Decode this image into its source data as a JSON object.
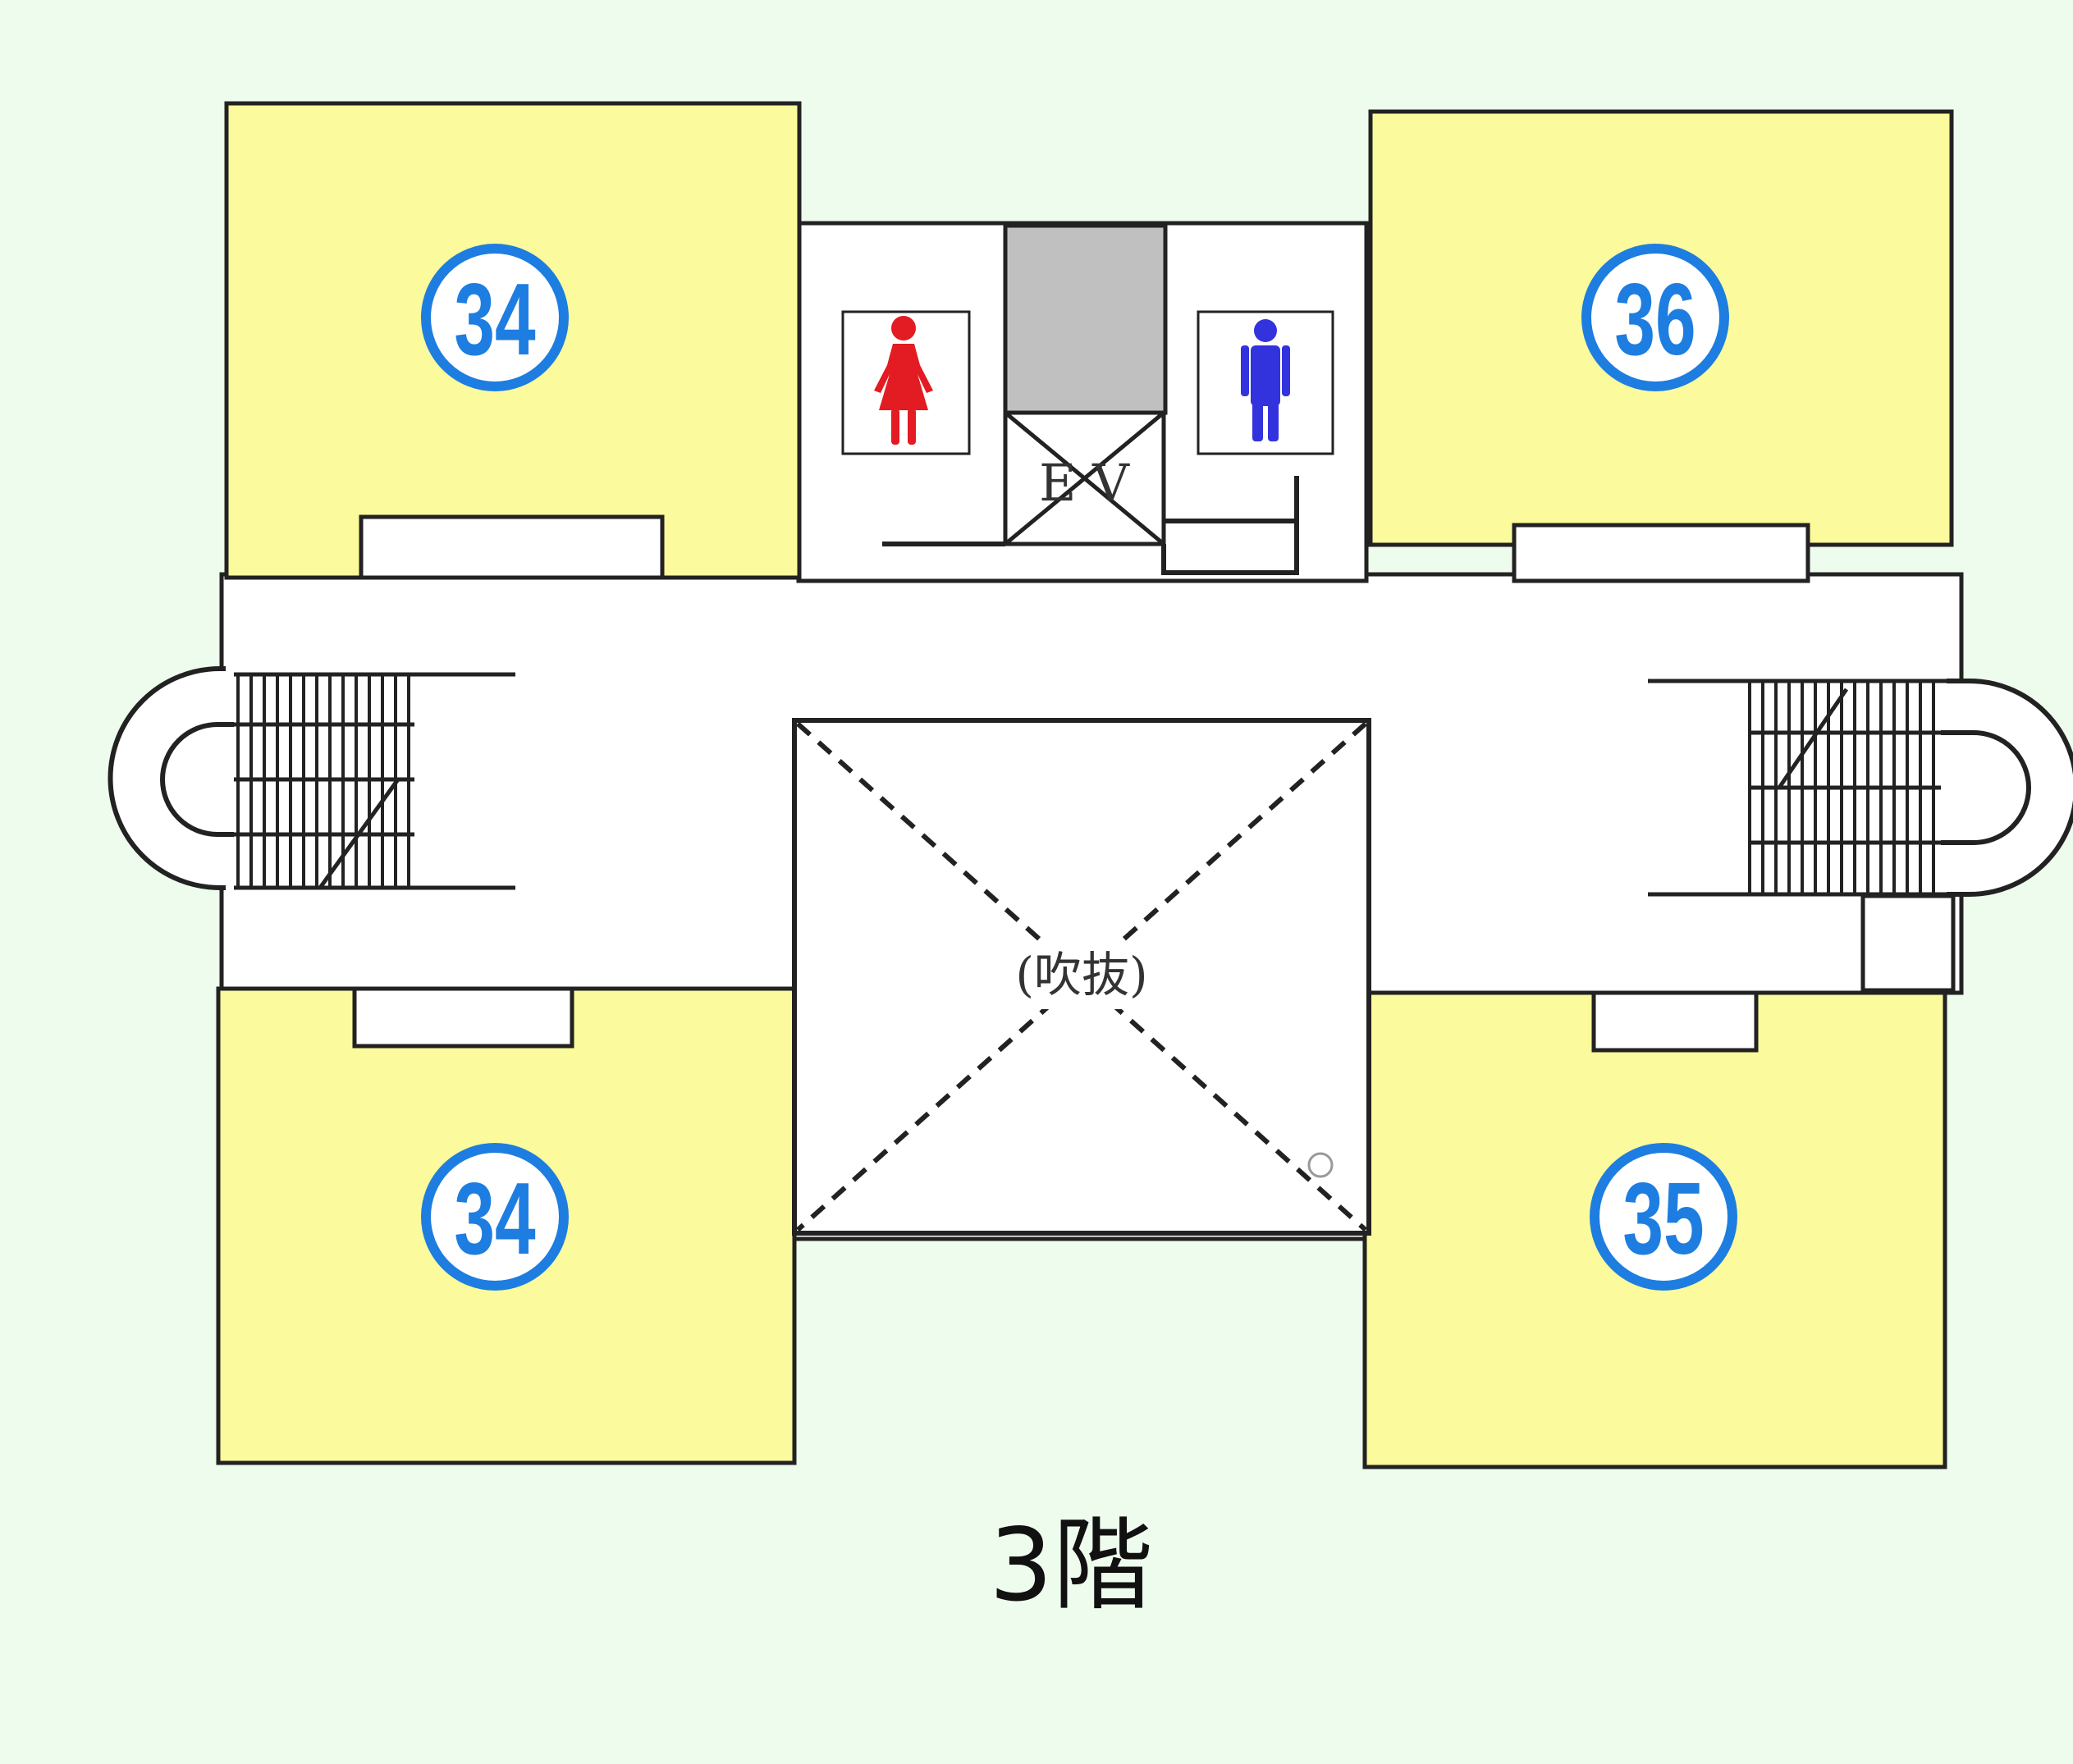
{
  "colors": {
    "background": "#eefced",
    "room_fill": "#fbfa9c",
    "corridor_fill": "#ffffff",
    "line": "#222222",
    "badge": "#1e7de0",
    "elevator_shaft": "#c0c0c0",
    "female_icon": "#e31b23",
    "male_icon": "#3333dd"
  },
  "rooms": [
    {
      "id": "room-nw",
      "number": "34"
    },
    {
      "id": "room-sw",
      "number": "34"
    },
    {
      "id": "room-ne",
      "number": "36"
    },
    {
      "id": "room-se",
      "number": "35"
    }
  ],
  "elevator": {
    "label": "E V"
  },
  "atrium": {
    "label": "(吹抜)"
  },
  "restrooms": {
    "female_icon": "female-restroom-icon",
    "male_icon": "male-restroom-icon"
  },
  "floor_label": "3階"
}
